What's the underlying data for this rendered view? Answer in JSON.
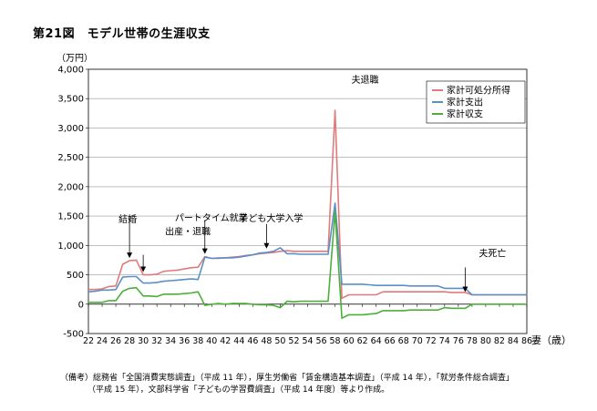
{
  "figure_title": "第21図　モデル世帯の生涯収支",
  "note": {
    "line1": "（備考）総務省「全国消費実態調査」（平成 11 年），厚生労働省「賃金構造基本調査」（平成 14 年），「就労条件総合調査」",
    "line2": "（平成 15 年），文部科学省「子どもの学習費調査」（平成 14 年度）等より作成。"
  },
  "chart_data": {
    "type": "line",
    "title": "",
    "ylabel": "（万円）",
    "xlabel": "妻（歳）",
    "ylim": [
      -500,
      4000
    ],
    "yticks": [
      "-500",
      "0",
      "500",
      "1,000",
      "1,500",
      "2,000",
      "2,500",
      "3,000",
      "3,500",
      "4,000"
    ],
    "xlim": [
      22,
      86
    ],
    "xticks": [
      "22",
      "24",
      "26",
      "28",
      "30",
      "32",
      "34",
      "36",
      "38",
      "40",
      "42",
      "44",
      "46",
      "48",
      "50",
      "52",
      "54",
      "56",
      "58",
      "60",
      "62",
      "64",
      "66",
      "68",
      "70",
      "72",
      "74",
      "76",
      "78",
      "80",
      "82",
      "84",
      "86"
    ],
    "grid": "horizontal",
    "legend_position": "top-right",
    "x": [
      22,
      23,
      24,
      25,
      26,
      27,
      28,
      29,
      30,
      31,
      32,
      33,
      34,
      35,
      36,
      37,
      38,
      39,
      40,
      41,
      42,
      43,
      44,
      45,
      46,
      47,
      48,
      49,
      50,
      51,
      52,
      53,
      54,
      55,
      56,
      57,
      58,
      59,
      60,
      61,
      62,
      63,
      64,
      65,
      66,
      67,
      68,
      69,
      70,
      71,
      72,
      73,
      74,
      75,
      76,
      77,
      78,
      79,
      80,
      81,
      82,
      83,
      84,
      85,
      86
    ],
    "series": [
      {
        "name": "家計可処分所得",
        "color": "#e07b7b",
        "values": [
          250,
          250,
          260,
          300,
          310,
          680,
          740,
          750,
          500,
          500,
          510,
          560,
          570,
          580,
          600,
          620,
          630,
          810,
          780,
          790,
          790,
          800,
          810,
          830,
          840,
          860,
          870,
          880,
          900,
          910,
          900,
          900,
          900,
          900,
          900,
          900,
          3300,
          100,
          160,
          160,
          160,
          160,
          160,
          210,
          210,
          210,
          210,
          210,
          210,
          210,
          210,
          210,
          210,
          200,
          200,
          200,
          160,
          160,
          160,
          160,
          160,
          160,
          160,
          160,
          160
        ]
      },
      {
        "name": "家計支出",
        "color": "#5b8fc7",
        "values": [
          210,
          220,
          240,
          240,
          250,
          460,
          470,
          470,
          360,
          360,
          370,
          390,
          400,
          410,
          420,
          430,
          420,
          800,
          780,
          780,
          790,
          790,
          800,
          820,
          840,
          870,
          880,
          900,
          960,
          860,
          860,
          850,
          850,
          850,
          850,
          850,
          1720,
          340,
          340,
          340,
          340,
          330,
          320,
          320,
          320,
          320,
          320,
          310,
          310,
          310,
          310,
          310,
          270,
          270,
          270,
          270,
          160,
          160,
          160,
          160,
          160,
          160,
          160,
          160,
          160
        ]
      },
      {
        "name": "家計収支",
        "color": "#4caf3a",
        "values": [
          30,
          30,
          30,
          60,
          60,
          220,
          270,
          280,
          140,
          140,
          130,
          170,
          170,
          170,
          180,
          190,
          210,
          -20,
          0,
          10,
          0,
          10,
          10,
          10,
          0,
          -10,
          -10,
          -20,
          -60,
          50,
          40,
          50,
          50,
          50,
          50,
          50,
          1580,
          -240,
          -180,
          -180,
          -180,
          -170,
          -160,
          -110,
          -110,
          -110,
          -110,
          -100,
          -100,
          -100,
          -100,
          -100,
          -60,
          -70,
          -70,
          -70,
          0,
          0,
          0,
          0,
          0,
          0,
          0,
          0,
          0
        ]
      }
    ],
    "annotations": [
      {
        "text": "結婚",
        "x": 28,
        "y": 740
      },
      {
        "text": "出産・退職",
        "x": 30,
        "y": 500
      },
      {
        "text": "パートタイム就業",
        "x": 39,
        "y": 810
      },
      {
        "text": "子ども大学入学",
        "x": 48,
        "y": 900
      },
      {
        "text": "夫退職",
        "x": 58,
        "y": 3300
      },
      {
        "text": "夫死亡",
        "x": 77,
        "y": 160
      }
    ]
  }
}
